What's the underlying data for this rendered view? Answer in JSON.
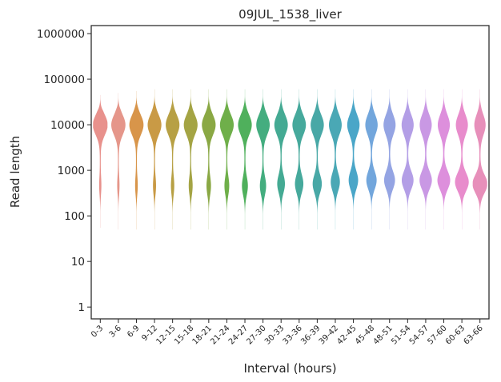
{
  "chart_data": {
    "type": "violin",
    "title": "09JUL_1538_liver",
    "xlabel": "Interval (hours)",
    "ylabel": "Read length",
    "yscale": "log",
    "ylim": [
      0.55,
      1500000
    ],
    "yticks": [
      1,
      10,
      100,
      1000,
      10000,
      100000,
      1000000
    ],
    "ytick_labels": [
      "1",
      "10",
      "100",
      "1000",
      "10000",
      "100000",
      "1000000"
    ],
    "grid": false,
    "legend": "none",
    "categories": [
      "0-3",
      "3-6",
      "6-9",
      "9-12",
      "12-15",
      "15-18",
      "18-21",
      "21-24",
      "24-27",
      "27-30",
      "30-33",
      "33-36",
      "36-39",
      "39-42",
      "42-45",
      "45-48",
      "48-51",
      "51-54",
      "54-57",
      "57-60",
      "60-63",
      "63-66"
    ],
    "colors": [
      "#e8918c",
      "#e5968a",
      "#d8954a",
      "#c99a45",
      "#b7a044",
      "#a4a444",
      "#8aa844",
      "#6faf4a",
      "#4fb05c",
      "#44ad7f",
      "#44aa93",
      "#46a99c",
      "#48a8a6",
      "#4aa8b5",
      "#4aa6c8",
      "#72a6dc",
      "#94a4e3",
      "#b39ee6",
      "#c998e4",
      "#dd8fdc",
      "#e88ccc",
      "#e78fba"
    ],
    "series": [
      {
        "name": "0-3",
        "min": 55,
        "max": 45000,
        "peak_upper": 10000,
        "peak_lower": 450,
        "upper_width": 1.0,
        "lower_width": 0.12
      },
      {
        "name": "3-6",
        "min": 50,
        "max": 50000,
        "peak_upper": 10000,
        "peak_lower": 450,
        "upper_width": 0.95,
        "lower_width": 0.13
      },
      {
        "name": "6-9",
        "min": 50,
        "max": 55000,
        "peak_upper": 10000,
        "peak_lower": 450,
        "upper_width": 0.95,
        "lower_width": 0.15
      },
      {
        "name": "9-12",
        "min": 50,
        "max": 60000,
        "peak_upper": 10000,
        "peak_lower": 450,
        "upper_width": 0.92,
        "lower_width": 0.18
      },
      {
        "name": "12-15",
        "min": 50,
        "max": 60000,
        "peak_upper": 10000,
        "peak_lower": 450,
        "upper_width": 0.92,
        "lower_width": 0.2
      },
      {
        "name": "15-18",
        "min": 50,
        "max": 60000,
        "peak_upper": 10000,
        "peak_lower": 450,
        "upper_width": 0.92,
        "lower_width": 0.24
      },
      {
        "name": "18-21",
        "min": 50,
        "max": 60000,
        "peak_upper": 10000,
        "peak_lower": 450,
        "upper_width": 0.92,
        "lower_width": 0.28
      },
      {
        "name": "21-24",
        "min": 50,
        "max": 60000,
        "peak_upper": 10000,
        "peak_lower": 450,
        "upper_width": 0.92,
        "lower_width": 0.3
      },
      {
        "name": "24-27",
        "min": 50,
        "max": 60000,
        "peak_upper": 10000,
        "peak_lower": 450,
        "upper_width": 0.92,
        "lower_width": 0.38
      },
      {
        "name": "27-30",
        "min": 50,
        "max": 60000,
        "peak_upper": 10000,
        "peak_lower": 450,
        "upper_width": 0.9,
        "lower_width": 0.4
      },
      {
        "name": "30-33",
        "min": 50,
        "max": 60000,
        "peak_upper": 10000,
        "peak_lower": 500,
        "upper_width": 0.9,
        "lower_width": 0.5
      },
      {
        "name": "33-36",
        "min": 50,
        "max": 60000,
        "peak_upper": 10000,
        "peak_lower": 500,
        "upper_width": 0.9,
        "lower_width": 0.55
      },
      {
        "name": "36-39",
        "min": 50,
        "max": 60000,
        "peak_upper": 10000,
        "peak_lower": 500,
        "upper_width": 0.88,
        "lower_width": 0.6
      },
      {
        "name": "39-42",
        "min": 50,
        "max": 60000,
        "peak_upper": 10000,
        "peak_lower": 550,
        "upper_width": 0.85,
        "lower_width": 0.6
      },
      {
        "name": "42-45",
        "min": 50,
        "max": 60000,
        "peak_upper": 10000,
        "peak_lower": 600,
        "upper_width": 0.82,
        "lower_width": 0.62
      },
      {
        "name": "45-48",
        "min": 50,
        "max": 60000,
        "peak_upper": 10000,
        "peak_lower": 600,
        "upper_width": 0.82,
        "lower_width": 0.68
      },
      {
        "name": "48-51",
        "min": 50,
        "max": 60000,
        "peak_upper": 10000,
        "peak_lower": 600,
        "upper_width": 0.8,
        "lower_width": 0.72
      },
      {
        "name": "51-54",
        "min": 50,
        "max": 60000,
        "peak_upper": 10000,
        "peak_lower": 600,
        "upper_width": 0.8,
        "lower_width": 0.78
      },
      {
        "name": "54-57",
        "min": 50,
        "max": 60000,
        "peak_upper": 10000,
        "peak_lower": 600,
        "upper_width": 0.8,
        "lower_width": 0.82
      },
      {
        "name": "57-60",
        "min": 50,
        "max": 60000,
        "peak_upper": 10000,
        "peak_lower": 600,
        "upper_width": 0.8,
        "lower_width": 0.85
      },
      {
        "name": "60-63",
        "min": 50,
        "max": 60000,
        "peak_upper": 10000,
        "peak_lower": 550,
        "upper_width": 0.8,
        "lower_width": 0.92
      },
      {
        "name": "63-66",
        "min": 50,
        "max": 60000,
        "peak_upper": 10000,
        "peak_lower": 500,
        "upper_width": 0.75,
        "lower_width": 1.0
      }
    ]
  }
}
